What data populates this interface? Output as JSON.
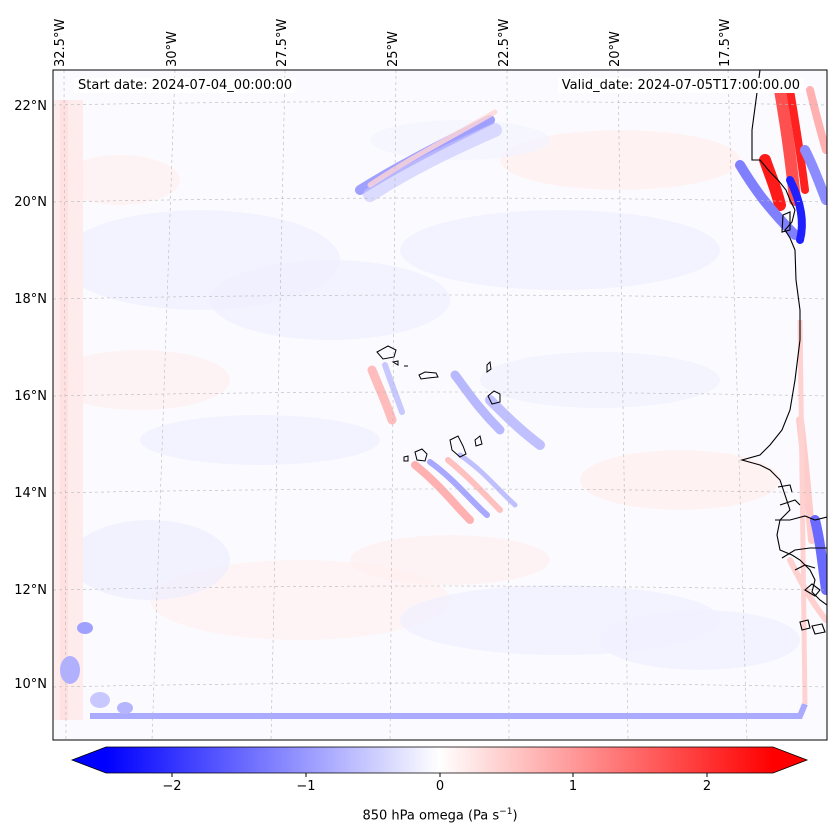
{
  "header": {
    "start_date": "Start date: 2024-07-04_00:00:00",
    "valid_date": "Valid_date: 2024-07-05T17:00:00.00"
  },
  "map": {
    "region": "Cape Verde and West African coast",
    "variable": "850 hPa omega",
    "lat_labels": [
      "22°N",
      "20°N",
      "18°N",
      "16°N",
      "14°N",
      "12°N",
      "10°N"
    ],
    "lon_labels": [
      "32.5°W",
      "30°W",
      "27.5°W",
      "25°W",
      "22.5°W",
      "20°W",
      "17.5°W"
    ],
    "gridlines": true,
    "colormap": "bwr",
    "colors": {
      "negative": "#0000ff",
      "zero": "#ffffff",
      "positive": "#ff0000",
      "coastline": "#000000"
    }
  },
  "colorbar": {
    "ticks": [
      "−2",
      "−1",
      "0",
      "1",
      "2"
    ],
    "tick_values": [
      -2,
      -1,
      0,
      1,
      2
    ],
    "range": [
      -2.6,
      2.6
    ],
    "label_prefix": "850 hPa omega (Pa s",
    "label_sup": "−1",
    "label_suffix": ")",
    "extend": "both"
  }
}
